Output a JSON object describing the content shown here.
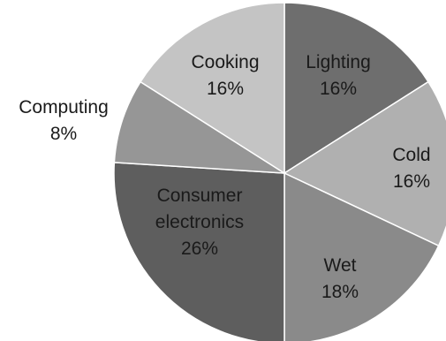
{
  "chart_data": {
    "type": "pie",
    "slices": [
      {
        "label": "Lighting",
        "value": 16,
        "value_label": "16%",
        "color": "#6e6e6e"
      },
      {
        "label": "Cold",
        "value": 16,
        "value_label": "16%",
        "color": "#b0b0b0"
      },
      {
        "label": "Wet",
        "value": 18,
        "value_label": "18%",
        "color": "#8a8a8a"
      },
      {
        "label": "Consumer electronics",
        "label_lines": [
          "Consumer",
          "electronics"
        ],
        "value": 26,
        "value_label": "26%",
        "color": "#5e5e5e"
      },
      {
        "label": "Computing",
        "value": 8,
        "value_label": "8%",
        "color": "#969696"
      },
      {
        "label": "Cooking",
        "value": 16,
        "value_label": "16%",
        "color": "#c4c4c4"
      }
    ],
    "start": "12 o'clock",
    "direction": "clockwise",
    "legend": "none"
  }
}
